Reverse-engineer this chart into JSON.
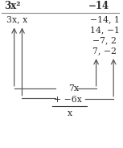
{
  "title_left": "3x²",
  "title_right": "−14",
  "factors_left": "3x, x",
  "factors_right_list": [
    "−14, 1",
    "14, −1",
    "−7, 2",
    "7, −2"
  ],
  "bottom_line1": "7x",
  "bottom_line2": "+ −6x",
  "bottom_line3": "x",
  "bg_color": "#ffffff",
  "text_color": "#2d2d2d",
  "arrow_color": "#555555",
  "title_fontsize": 8.5,
  "body_fontsize": 7.8
}
